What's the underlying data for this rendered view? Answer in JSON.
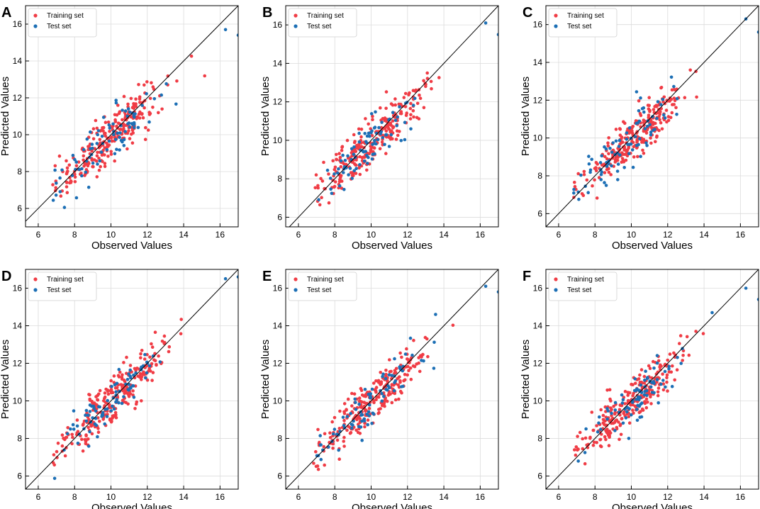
{
  "colors": {
    "training": "#f03c45",
    "test": "#1c6fb5",
    "diagonal": "#000000",
    "grid": "#dcdcdc"
  },
  "chart_data": [
    {
      "type": "scatter",
      "panel": "A",
      "xlabel": "Observed Values",
      "ylabel": "Predicted Values",
      "xlim": [
        5.3,
        17.0
      ],
      "ylim": [
        5.0,
        17.0
      ],
      "xticks": [
        6,
        8,
        10,
        12,
        14,
        16
      ],
      "yticks": [
        6,
        8,
        10,
        12,
        14,
        16
      ],
      "grid": true,
      "legend_position": "top-left",
      "reference_line": "y = x",
      "series": [
        {
          "name": "Training set",
          "color_key": "training",
          "seed": 11,
          "n": 260,
          "noise": 0.65,
          "slope": 0.88,
          "intercept": 1.1
        },
        {
          "name": "Test set",
          "color_key": "test",
          "seed": 23,
          "n": 85,
          "noise": 0.65,
          "slope": 0.9,
          "intercept": 0.9,
          "extra_points": [
            [
              16.3,
              15.7
            ],
            [
              17.0,
              15.4
            ]
          ]
        }
      ]
    },
    {
      "type": "scatter",
      "panel": "B",
      "xlabel": "Observed Values",
      "ylabel": "Predicted Values",
      "xlim": [
        5.3,
        17.0
      ],
      "ylim": [
        5.5,
        17.0
      ],
      "xticks": [
        6,
        8,
        10,
        12,
        14,
        16
      ],
      "yticks": [
        6,
        8,
        10,
        12,
        14,
        16
      ],
      "grid": true,
      "legend_position": "top-left",
      "reference_line": "y = x",
      "series": [
        {
          "name": "Training set",
          "color_key": "training",
          "seed": 37,
          "n": 260,
          "noise": 0.6,
          "slope": 0.9,
          "intercept": 0.95
        },
        {
          "name": "Test set",
          "color_key": "test",
          "seed": 41,
          "n": 85,
          "noise": 0.6,
          "slope": 0.9,
          "intercept": 0.9,
          "extra_points": [
            [
              16.3,
              16.1
            ],
            [
              17.0,
              15.5
            ]
          ]
        }
      ]
    },
    {
      "type": "scatter",
      "panel": "C",
      "xlabel": "Observed Values",
      "ylabel": "Predicted Values",
      "xlim": [
        5.3,
        17.0
      ],
      "ylim": [
        5.3,
        17.0
      ],
      "xticks": [
        6,
        8,
        10,
        12,
        14,
        16
      ],
      "yticks": [
        6,
        8,
        10,
        12,
        14,
        16
      ],
      "grid": true,
      "legend_position": "top-left",
      "reference_line": "y = x",
      "series": [
        {
          "name": "Training set",
          "color_key": "training",
          "seed": 53,
          "n": 260,
          "noise": 0.6,
          "slope": 0.9,
          "intercept": 0.95
        },
        {
          "name": "Test set",
          "color_key": "test",
          "seed": 59,
          "n": 85,
          "noise": 0.6,
          "slope": 0.9,
          "intercept": 0.9,
          "extra_points": [
            [
              16.3,
              16.3
            ],
            [
              17.0,
              15.6
            ]
          ]
        }
      ]
    },
    {
      "type": "scatter",
      "panel": "D",
      "xlabel": "Observed Values",
      "ylabel": "Predicted Values",
      "xlim": [
        5.3,
        17.0
      ],
      "ylim": [
        5.3,
        17.0
      ],
      "xticks": [
        6,
        8,
        10,
        12,
        14,
        16
      ],
      "yticks": [
        6,
        8,
        10,
        12,
        14,
        16
      ],
      "grid": true,
      "legend_position": "top-left",
      "reference_line": "y = x",
      "series": [
        {
          "name": "Training set",
          "color_key": "training",
          "seed": 67,
          "n": 260,
          "noise": 0.6,
          "slope": 0.88,
          "intercept": 1.1
        },
        {
          "name": "Test set",
          "color_key": "test",
          "seed": 71,
          "n": 85,
          "noise": 0.6,
          "slope": 0.9,
          "intercept": 0.9,
          "extra_points": [
            [
              16.3,
              16.5
            ],
            [
              17.0,
              16.6
            ]
          ]
        }
      ]
    },
    {
      "type": "scatter",
      "panel": "E",
      "xlabel": "Observed Values",
      "ylabel": "Predicted Values",
      "xlim": [
        5.3,
        17.0
      ],
      "ylim": [
        5.3,
        17.0
      ],
      "xticks": [
        6,
        8,
        10,
        12,
        14,
        16
      ],
      "yticks": [
        6,
        8,
        10,
        12,
        14,
        16
      ],
      "grid": true,
      "legend_position": "top-left",
      "reference_line": "y = x",
      "series": [
        {
          "name": "Training set",
          "color_key": "training",
          "seed": 79,
          "n": 260,
          "noise": 0.6,
          "slope": 0.9,
          "intercept": 0.95
        },
        {
          "name": "Test set",
          "color_key": "test",
          "seed": 83,
          "n": 85,
          "noise": 0.6,
          "slope": 0.9,
          "intercept": 0.9,
          "extra_points": [
            [
              16.3,
              16.1
            ],
            [
              17.0,
              15.8
            ]
          ]
        }
      ]
    },
    {
      "type": "scatter",
      "panel": "F",
      "xlabel": "Observed Values",
      "ylabel": "Predicted Values",
      "xlim": [
        5.3,
        17.0
      ],
      "ylim": [
        5.3,
        17.0
      ],
      "xticks": [
        6,
        8,
        10,
        12,
        14,
        16
      ],
      "yticks": [
        6,
        8,
        10,
        12,
        14,
        16
      ],
      "grid": true,
      "legend_position": "top-left",
      "reference_line": "y = x",
      "series": [
        {
          "name": "Training set",
          "color_key": "training",
          "seed": 89,
          "n": 260,
          "noise": 0.6,
          "slope": 0.9,
          "intercept": 0.95
        },
        {
          "name": "Test set",
          "color_key": "test",
          "seed": 97,
          "n": 85,
          "noise": 0.6,
          "slope": 0.9,
          "intercept": 0.9,
          "extra_points": [
            [
              16.3,
              16.0
            ],
            [
              17.0,
              15.4
            ]
          ]
        }
      ]
    }
  ]
}
